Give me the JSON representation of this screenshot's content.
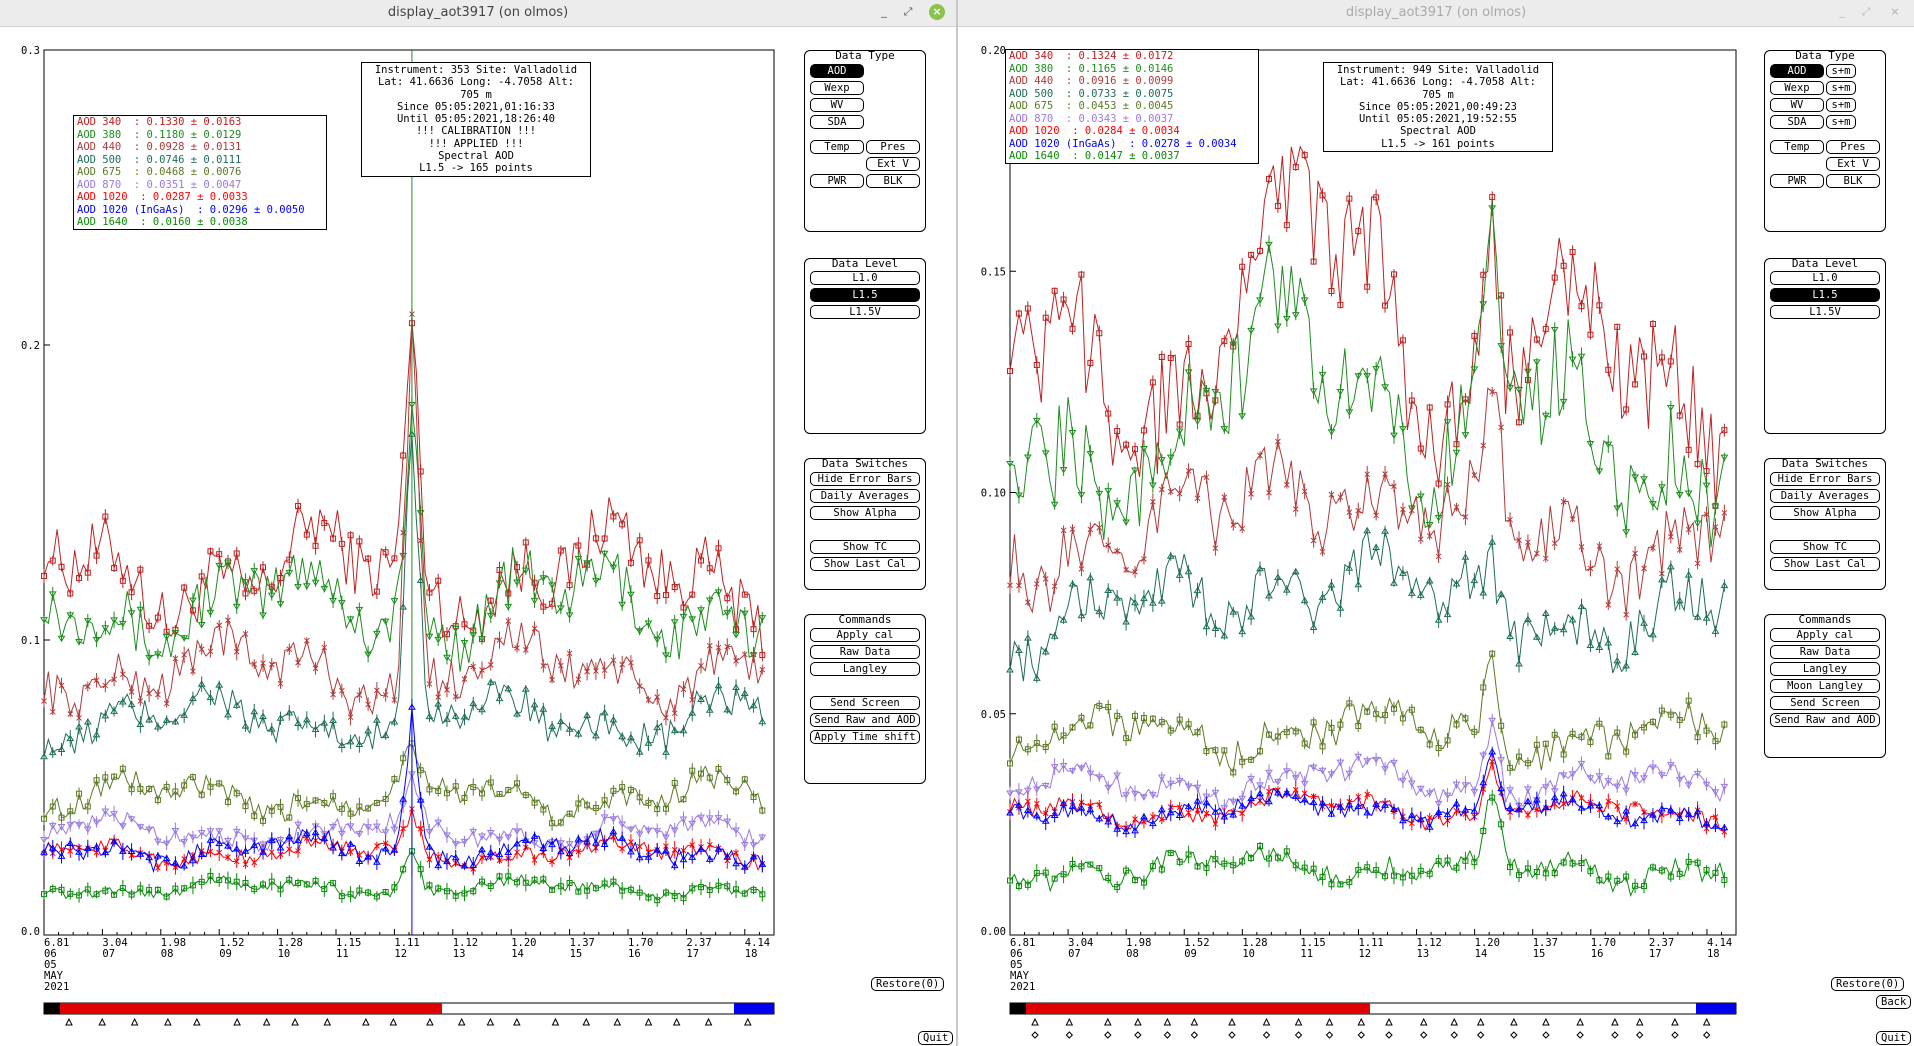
{
  "windows": [
    {
      "title": "display_aot3917 (on olmos)",
      "info": [
        "Instrument: 353 Site: Valladolid",
        "Lat: 41.6636 Long: -4.7058 Alt: 705 m",
        "Since 05:05:2021,01:16:33",
        "Until 05:05:2021,18:26:40",
        "!!! CALIBRATION !!!",
        "!!!   APPLIED   !!!",
        "Spectral AOD",
        "L1.5 -> 165 points"
      ],
      "legend": [
        {
          "label": "AOD 340  : 0.1330 ± 0.0163",
          "color": "#c02020",
          "marker": "square"
        },
        {
          "label": "AOD 380  : 0.1180 ± 0.0129",
          "color": "#1e8c1e",
          "marker": "tri-down"
        },
        {
          "label": "AOD 440  : 0.0928 ± 0.0131",
          "color": "#b03a3a",
          "marker": "x"
        },
        {
          "label": "AOD 500  : 0.0746 ± 0.0111",
          "color": "#1e6e55",
          "marker": "tri-up"
        },
        {
          "label": "AOD 675  : 0.0468 ± 0.0076",
          "color": "#5c7a25",
          "marker": "square"
        },
        {
          "label": "AOD 870  : 0.0351 ± 0.0047",
          "color": "#9a7ae0",
          "marker": "tri-down"
        },
        {
          "label": "AOD 1020  : 0.0287 ± 0.0033",
          "color": "#ff0000",
          "marker": "x"
        },
        {
          "label": "AOD 1020 (InGaAs)  : 0.0296 ± 0.0050",
          "color": "#0000ff",
          "marker": "tri-up"
        },
        {
          "label": "AOD 1640  : 0.0160 ± 0.0038",
          "color": "#0a8a0a",
          "marker": "square"
        }
      ],
      "y_ticks": [
        "0.0",
        "0.1",
        "0.2",
        "0.3"
      ],
      "x_ticks": [
        {
          "top": "6.81",
          "bottom": "06"
        },
        {
          "top": "3.04",
          "bottom": "07"
        },
        {
          "top": "1.98",
          "bottom": "08"
        },
        {
          "top": "1.52",
          "bottom": "09"
        },
        {
          "top": "1.28",
          "bottom": "10"
        },
        {
          "top": "1.15",
          "bottom": "11"
        },
        {
          "top": "1.11",
          "bottom": "12"
        },
        {
          "top": "1.12",
          "bottom": "13"
        },
        {
          "top": "1.20",
          "bottom": "14"
        },
        {
          "top": "1.37",
          "bottom": "15"
        },
        {
          "top": "1.70",
          "bottom": "16"
        },
        {
          "top": "2.37",
          "bottom": "17"
        },
        {
          "top": "4.14",
          "bottom": "18"
        }
      ],
      "date_labels": [
        "05",
        "MAY",
        "2021"
      ],
      "data_type": {
        "title": "Data Type",
        "buttons": [
          "AOD",
          "Wexp",
          "WV",
          "SDA"
        ],
        "selected": "AOD",
        "extra": [
          "Temp",
          "Pres",
          "Ext V",
          "PWR",
          "BLK"
        ]
      },
      "data_level": {
        "title": "Data Level",
        "buttons": [
          "L1.0",
          "L1.5",
          "L1.5V"
        ],
        "selected": "L1.5"
      },
      "data_switches": {
        "title": "Data Switches",
        "buttons": [
          "Hide Error Bars",
          "Daily Averages",
          "Show Alpha",
          "Show TC",
          "Show Last Cal"
        ]
      },
      "commands": {
        "title": "Commands",
        "buttons": [
          "Apply cal",
          "Raw Data",
          "Langley",
          "Send Screen",
          "Send Raw and AOD",
          "Apply Time shift"
        ]
      },
      "restore": "Restore(0)",
      "quit": "Quit"
    },
    {
      "title": "display_aot3917 (on olmos)",
      "info": [
        "Instrument: 949 Site: Valladolid",
        "Lat: 41.6636 Long: -4.7058 Alt: 705 m",
        "Since 05:05:2021,00:49:23",
        "Until 05:05:2021,19:52:55",
        "Spectral AOD",
        "L1.5 -> 161 points"
      ],
      "legend": [
        {
          "label": "AOD 340  : 0.1324 ± 0.0172",
          "color": "#c02020",
          "marker": "square"
        },
        {
          "label": "AOD 380  : 0.1165 ± 0.0146",
          "color": "#1e8c1e",
          "marker": "tri-down"
        },
        {
          "label": "AOD 440  : 0.0916 ± 0.0099",
          "color": "#b03a3a",
          "marker": "x"
        },
        {
          "label": "AOD 500  : 0.0733 ± 0.0075",
          "color": "#1e6e55",
          "marker": "tri-up"
        },
        {
          "label": "AOD 675  : 0.0453 ± 0.0045",
          "color": "#5c7a25",
          "marker": "square"
        },
        {
          "label": "AOD 870  : 0.0343 ± 0.0037",
          "color": "#9a7ae0",
          "marker": "tri-down"
        },
        {
          "label": "AOD 1020  : 0.0284 ± 0.0034",
          "color": "#ff0000",
          "marker": "x"
        },
        {
          "label": "AOD 1020 (InGaAs)  : 0.0278 ± 0.0034",
          "color": "#0000ff",
          "marker": "tri-up"
        },
        {
          "label": "AOD 1640  : 0.0147 ± 0.0037",
          "color": "#0a8a0a",
          "marker": "square"
        }
      ],
      "y_ticks": [
        "0.00",
        "0.05",
        "0.10",
        "0.15",
        "0.20"
      ],
      "x_ticks": [
        {
          "top": "6.81",
          "bottom": "06"
        },
        {
          "top": "3.04",
          "bottom": "07"
        },
        {
          "top": "1.98",
          "bottom": "08"
        },
        {
          "top": "1.52",
          "bottom": "09"
        },
        {
          "top": "1.28",
          "bottom": "10"
        },
        {
          "top": "1.15",
          "bottom": "11"
        },
        {
          "top": "1.11",
          "bottom": "12"
        },
        {
          "top": "1.12",
          "bottom": "13"
        },
        {
          "top": "1.20",
          "bottom": "14"
        },
        {
          "top": "1.37",
          "bottom": "15"
        },
        {
          "top": "1.70",
          "bottom": "16"
        },
        {
          "top": "2.37",
          "bottom": "17"
        },
        {
          "top": "4.14",
          "bottom": "18"
        }
      ],
      "date_labels": [
        "05",
        "MAY",
        "2021"
      ],
      "data_type": {
        "title": "Data Type",
        "buttons": [
          "AOD",
          "Wexp",
          "WV",
          "SDA"
        ],
        "selected": "AOD",
        "sm": [
          "s+m",
          "s+m",
          "s+m",
          "s+m"
        ],
        "extra": [
          "Temp",
          "Pres",
          "Ext V",
          "PWR",
          "BLK"
        ]
      },
      "data_level": {
        "title": "Data Level",
        "buttons": [
          "L1.0",
          "L1.5",
          "L1.5V"
        ],
        "selected": "L1.5"
      },
      "data_switches": {
        "title": "Data Switches",
        "buttons": [
          "Hide Error Bars",
          "Daily Averages",
          "Show Alpha",
          "Show TC",
          "Show Last Cal"
        ]
      },
      "commands": {
        "title": "Commands",
        "buttons": [
          "Apply cal",
          "Raw Data",
          "Langley",
          "Moon Langley",
          "Send Screen",
          "Send Raw and AOD"
        ]
      },
      "restore": "Restore(0)",
      "back": "Back",
      "quit": "Quit"
    }
  ],
  "chart_data": [
    {
      "type": "line",
      "ylim": [
        0,
        0.3
      ],
      "x_hours": [
        6,
        18.5
      ],
      "series": [
        {
          "name": "AOD 340",
          "base": 0.123,
          "amp": 0.018,
          "peak": 0.205
        },
        {
          "name": "AOD 380",
          "base": 0.112,
          "amp": 0.016,
          "peak": 0.18
        },
        {
          "name": "AOD 440",
          "base": 0.09,
          "amp": 0.012,
          "peak": 0.206
        },
        {
          "name": "AOD 500",
          "base": 0.073,
          "amp": 0.01,
          "peak": 0.17
        },
        {
          "name": "AOD 675",
          "base": 0.047,
          "amp": 0.007,
          "peak": 0.06
        },
        {
          "name": "AOD 870",
          "base": 0.035,
          "amp": 0.005,
          "peak": 0.05
        },
        {
          "name": "AOD 1020",
          "base": 0.028,
          "amp": 0.004,
          "peak": 0.04
        },
        {
          "name": "AOD 1020 (InGaAs)",
          "base": 0.029,
          "amp": 0.005,
          "peak": 0.075
        },
        {
          "name": "AOD 1640",
          "base": 0.016,
          "amp": 0.003,
          "peak": 0.03
        }
      ]
    },
    {
      "type": "line",
      "ylim": [
        0,
        0.2
      ],
      "x_hours": [
        6,
        18.5
      ],
      "series": [
        {
          "name": "AOD 340",
          "base": 0.128,
          "amp": 0.022,
          "peak": 0.17
        },
        {
          "name": "AOD 380",
          "base": 0.112,
          "amp": 0.02,
          "peak": 0.16
        },
        {
          "name": "AOD 440",
          "base": 0.09,
          "amp": 0.013,
          "peak": 0.12
        },
        {
          "name": "AOD 500",
          "base": 0.072,
          "amp": 0.01,
          "peak": 0.08
        },
        {
          "name": "AOD 675",
          "base": 0.045,
          "amp": 0.006,
          "peak": 0.063
        },
        {
          "name": "AOD 870",
          "base": 0.034,
          "amp": 0.004,
          "peak": 0.05
        },
        {
          "name": "AOD 1020",
          "base": 0.028,
          "amp": 0.003,
          "peak": 0.04
        },
        {
          "name": "AOD 1020 (InGaAs)",
          "base": 0.028,
          "amp": 0.003,
          "peak": 0.041
        },
        {
          "name": "AOD 1640",
          "base": 0.015,
          "amp": 0.004,
          "peak": 0.03
        }
      ]
    }
  ]
}
